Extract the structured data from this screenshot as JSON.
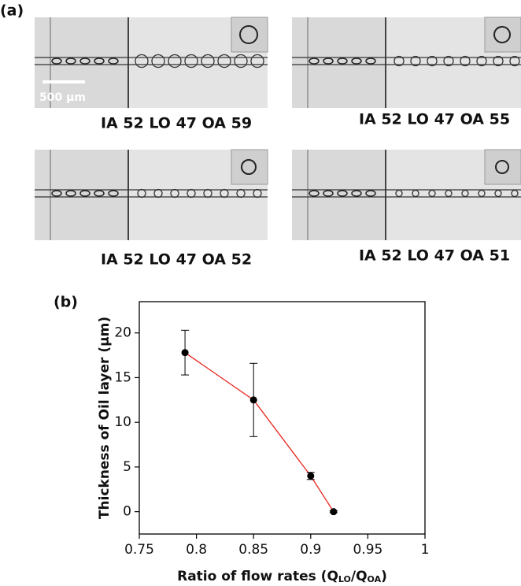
{
  "panel_labels": [
    "(a)",
    "(b)"
  ],
  "images": [
    {
      "caption": "IA 52 LO 47 OA 59"
    },
    {
      "caption": "IA 52 LO 47 OA 55"
    },
    {
      "caption": "IA 52 LO 47 OA 52"
    },
    {
      "caption": "IA 52 LO 47 OA 51"
    }
  ],
  "scale_bar": "500 µm",
  "chart_data": {
    "type": "line",
    "xlabel": [
      "Ratio of flow rates (Q",
      "LO",
      "/Q",
      "OA",
      ")"
    ],
    "ylabel": "Thickness of Oil layer (μm)",
    "x": [
      0.79,
      0.85,
      0.9,
      0.92
    ],
    "series": [
      {
        "color": "#e8261f",
        "marker_color": "#000000",
        "values": [
          17.8,
          12.5,
          4.0,
          0.0
        ],
        "errors": [
          2.5,
          4.1,
          0.4,
          0.1
        ]
      }
    ],
    "xlim": [
      0.75,
      1
    ],
    "xticks": [
      0.75,
      0.8,
      0.85,
      0.9,
      0.95,
      1
    ],
    "ylim": [
      -2.5,
      23.5
    ],
    "yticks": [
      0,
      5,
      10,
      15,
      20
    ]
  }
}
